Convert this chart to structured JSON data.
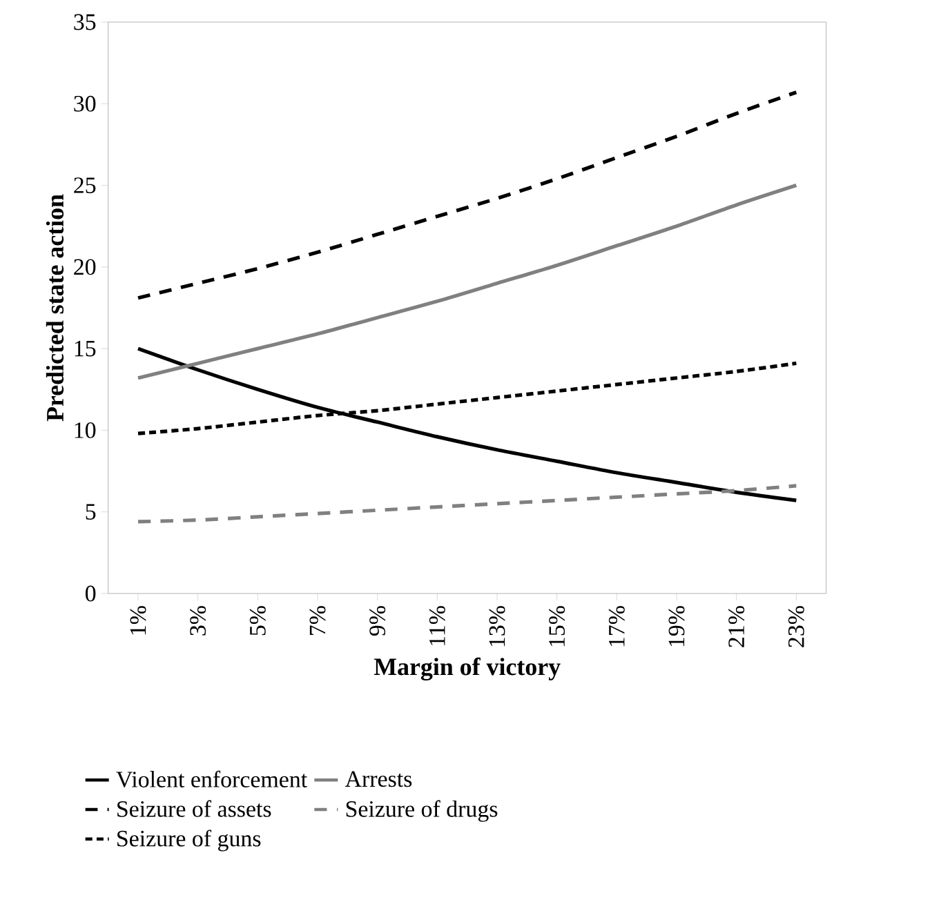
{
  "chart_data": {
    "type": "line",
    "xlabel": "Margin of victory",
    "ylabel": "Predicted state action",
    "categories": [
      "1%",
      "3%",
      "5%",
      "7%",
      "9%",
      "11%",
      "13%",
      "15%",
      "17%",
      "19%",
      "21%",
      "23%"
    ],
    "ylim": [
      0,
      35
    ],
    "yticks": [
      0,
      5,
      10,
      15,
      20,
      25,
      30,
      35
    ],
    "grid": false,
    "legend": "bottom",
    "marker": "none",
    "series": [
      {
        "name": "Violent enforcement",
        "color": "#000000",
        "line_style": "solid",
        "values": [
          15,
          13.7,
          12.5,
          11.4,
          10.5,
          9.6,
          8.8,
          8.1,
          7.4,
          6.8,
          6.2,
          5.7
        ]
      },
      {
        "name": "Arrests",
        "color": "#808080",
        "line_style": "solid",
        "values": [
          13.2,
          14.1,
          15.0,
          15.9,
          16.9,
          17.9,
          19.0,
          20.1,
          21.3,
          22.5,
          23.8,
          25.0
        ]
      },
      {
        "name": "Seizure of assets",
        "color": "#000000",
        "line_style": "dashed",
        "values": [
          18.1,
          19.0,
          19.9,
          20.9,
          22.0,
          23.1,
          24.2,
          25.4,
          26.7,
          28.0,
          29.4,
          30.7
        ]
      },
      {
        "name": "Seizure of drugs",
        "color": "#808080",
        "line_style": "dashed",
        "values": [
          4.4,
          4.5,
          4.7,
          4.9,
          5.1,
          5.3,
          5.5,
          5.7,
          5.9,
          6.1,
          6.3,
          6.6
        ]
      },
      {
        "name": "Seizure of guns",
        "color": "#000000",
        "line_style": "dotted",
        "values": [
          9.8,
          10.1,
          10.5,
          10.9,
          11.2,
          11.6,
          12.0,
          12.4,
          12.8,
          13.2,
          13.6,
          14.1
        ]
      }
    ]
  }
}
